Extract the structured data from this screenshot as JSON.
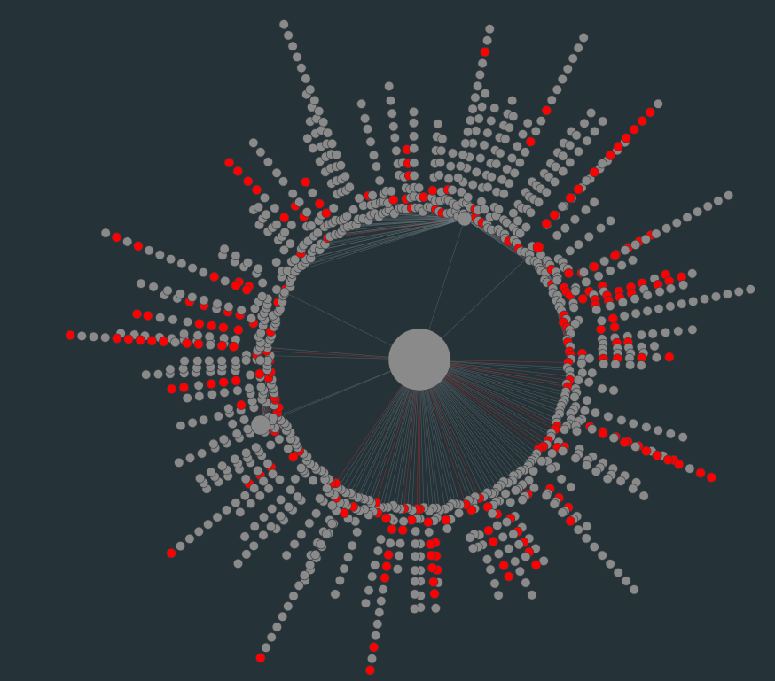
{
  "colors": {
    "background": "#253338",
    "node_default": "#8a8a8a",
    "node_highlight": "#ff0000",
    "edge_default": "#7f8a8e",
    "edge_highlight": "#d03030"
  },
  "graph": {
    "root": "root",
    "hubs": [
      "hub-upper",
      "hub-left",
      "hub-lower-left",
      "hub-lower"
    ],
    "layout": "radial-tree",
    "highlighted_fraction": 0.15
  }
}
